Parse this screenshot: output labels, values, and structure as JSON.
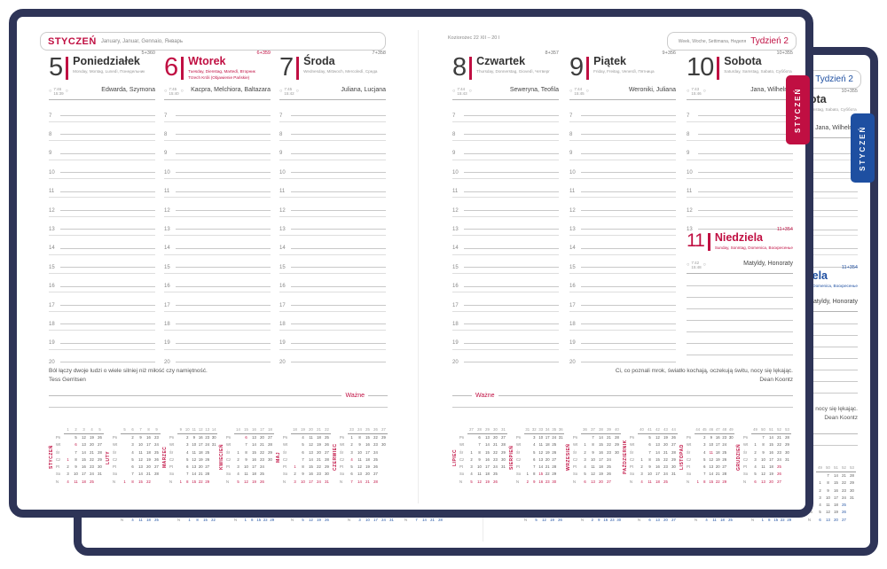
{
  "colors": {
    "cover_navy": "#2e3457",
    "accent_front": "#c00f42",
    "accent_back": "#1e4fa1",
    "line_gray": "#c9c9c9"
  },
  "page": {
    "month_header": {
      "month": "STYCZEŃ",
      "subtitle": "January, Januar, Gennaio, Январь"
    },
    "zodiac": "Koziorożec 22 XII – 20 I",
    "week_box": {
      "subtitle": "Week, Woche, Settimana, Неделя",
      "label": "Tydzień 2"
    },
    "tab_label": "STYCZEŃ",
    "wazne_label": "Ważne",
    "hours": [
      "7",
      "8",
      "9",
      "10",
      "11",
      "12",
      "13",
      "14",
      "15",
      "16",
      "17",
      "18",
      "19",
      "20"
    ],
    "sun_circle_icon": "○",
    "days": [
      {
        "num": "5",
        "name": "Poniedziałek",
        "langs": "Monday, Montag, Lunedì, Понедельник",
        "counter": "5+360",
        "sunrise": "7:46",
        "sunset": "15:39",
        "names": "Edwarda, Szymona",
        "accent": false
      },
      {
        "num": "6",
        "name": "Wtorek",
        "langs": "Tuesday, Dienstag, Martedì, Вторник",
        "holiday": "Trzech Króli (Objawienie Pańskie)",
        "counter": "6+359",
        "sunrise": "7:45",
        "sunset": "15:40",
        "names": "Kacpra, Melchiora, Baltazara",
        "accent": true
      },
      {
        "num": "7",
        "name": "Środa",
        "langs": "Wednesday, Mittwoch, Mercoledì, Среда",
        "counter": "7+358",
        "sunrise": "7:45",
        "sunset": "15:42",
        "names": "Juliana, Lucjana",
        "accent": false
      },
      {
        "num": "8",
        "name": "Czwartek",
        "langs": "Thursday, Donnerstag, Giovedì, Четверг",
        "counter": "8+357",
        "sunrise": "7:44",
        "sunset": "15:43",
        "names": "Seweryna, Teofila",
        "accent": false
      },
      {
        "num": "9",
        "name": "Piątek",
        "langs": "Friday, Freitag, Venerdì, Пятница",
        "counter": "9+356",
        "sunrise": "7:44",
        "sunset": "15:45",
        "names": "Weroniki, Juliana",
        "accent": false
      },
      {
        "num": "10",
        "name": "Sobota",
        "langs": "Saturday, Samstag, Sabato, Суббота",
        "counter": "10+355",
        "sunrise": "7:43",
        "sunset": "15:46",
        "names": "Jana, Wilhelma",
        "accent": false,
        "has_sunday_inset": true
      }
    ],
    "sunday_inset": {
      "num": "11",
      "name": "Niedziela",
      "langs": "Sunday, Sonntag, Domenica, Воскресенье",
      "counter": "11+354",
      "sunrise": "7:42",
      "sunset": "15:48",
      "names": "Matyldy, Honoraty",
      "accent": true
    },
    "quotes": {
      "left": {
        "text": "Ból łączy dwoje ludzi o wiele silniej niż miłość czy namiętność.",
        "author": "Tess Gerritsen"
      },
      "right": {
        "text": "Ci, co poznali mrok, światło kochają, oczekują świtu, nocy się lękając.",
        "author": "Dean Koontz"
      }
    },
    "weekday_abbrevs": [
      "Pn",
      "Wt",
      "Śr",
      "Cz",
      "Pt",
      "So",
      "N"
    ],
    "mini_calendars": [
      {
        "label": "STYCZEŃ",
        "weeks": [
          "1",
          "2",
          "3",
          "4",
          "5"
        ],
        "rows": [
          [
            "",
            "5",
            "12",
            "19",
            "26"
          ],
          [
            "",
            "*6",
            "13",
            "20",
            "27"
          ],
          [
            "",
            "7",
            "14",
            "21",
            "28"
          ],
          [
            "*1",
            "8",
            "15",
            "22",
            "29"
          ],
          [
            "2",
            "9",
            "16",
            "23",
            "30"
          ],
          [
            "3",
            "10",
            "17",
            "24",
            "31"
          ],
          [
            "4",
            "11",
            "18",
            "25",
            ""
          ]
        ]
      },
      {
        "label": "LUTY",
        "weeks": [
          "5",
          "6",
          "7",
          "8",
          "9"
        ],
        "rows": [
          [
            "",
            "2",
            "9",
            "16",
            "23"
          ],
          [
            "",
            "3",
            "10",
            "17",
            "24"
          ],
          [
            "",
            "4",
            "11",
            "18",
            "25"
          ],
          [
            "",
            "5",
            "12",
            "19",
            "26"
          ],
          [
            "",
            "6",
            "13",
            "20",
            "27"
          ],
          [
            "",
            "7",
            "14",
            "21",
            "28"
          ],
          [
            "1",
            "8",
            "15",
            "22",
            ""
          ]
        ]
      },
      {
        "label": "MARZEC",
        "weeks": [
          "9",
          "10",
          "11",
          "12",
          "13",
          "14"
        ],
        "rows": [
          [
            "",
            "2",
            "9",
            "16",
            "23",
            "30"
          ],
          [
            "",
            "3",
            "10",
            "17",
            "24",
            "31"
          ],
          [
            "",
            "4",
            "11",
            "18",
            "25",
            ""
          ],
          [
            "",
            "5",
            "12",
            "19",
            "26",
            ""
          ],
          [
            "",
            "6",
            "13",
            "20",
            "27",
            ""
          ],
          [
            "",
            "7",
            "14",
            "21",
            "28",
            ""
          ],
          [
            "1",
            "8",
            "15",
            "22",
            "29",
            ""
          ]
        ]
      },
      {
        "label": "KWIECIEŃ",
        "weeks": [
          "14",
          "15",
          "16",
          "17",
          "18"
        ],
        "rows": [
          [
            "",
            "*6",
            "13",
            "20",
            "27"
          ],
          [
            "",
            "7",
            "14",
            "21",
            "28"
          ],
          [
            "1",
            "8",
            "15",
            "22",
            "29"
          ],
          [
            "2",
            "9",
            "16",
            "23",
            "30"
          ],
          [
            "3",
            "10",
            "17",
            "24",
            ""
          ],
          [
            "4",
            "11",
            "18",
            "25",
            ""
          ],
          [
            "5",
            "12",
            "19",
            "26",
            ""
          ]
        ]
      },
      {
        "label": "MAJ",
        "weeks": [
          "18",
          "19",
          "20",
          "21",
          "22"
        ],
        "rows": [
          [
            "",
            "4",
            "11",
            "18",
            "25"
          ],
          [
            "",
            "5",
            "12",
            "19",
            "26"
          ],
          [
            "",
            "6",
            "13",
            "20",
            "27"
          ],
          [
            "",
            "7",
            "14",
            "21",
            "28"
          ],
          [
            "*1",
            "8",
            "15",
            "22",
            "29"
          ],
          [
            "2",
            "9",
            "16",
            "23",
            "30"
          ],
          [
            "3",
            "10",
            "17",
            "24",
            "31"
          ]
        ]
      },
      {
        "label": "CZERWIEC",
        "weeks": [
          "23",
          "24",
          "25",
          "26",
          "27"
        ],
        "rows": [
          [
            "1",
            "8",
            "15",
            "22",
            "29"
          ],
          [
            "2",
            "9",
            "16",
            "23",
            "30"
          ],
          [
            "3",
            "10",
            "17",
            "24",
            ""
          ],
          [
            "*4",
            "11",
            "18",
            "25",
            ""
          ],
          [
            "5",
            "12",
            "19",
            "26",
            ""
          ],
          [
            "6",
            "13",
            "20",
            "27",
            ""
          ],
          [
            "7",
            "14",
            "21",
            "28",
            ""
          ]
        ]
      },
      {
        "label": "LIPIEC",
        "weeks": [
          "27",
          "28",
          "29",
          "30",
          "31"
        ],
        "rows": [
          [
            "",
            "6",
            "13",
            "20",
            "27"
          ],
          [
            "",
            "7",
            "14",
            "21",
            "28"
          ],
          [
            "1",
            "8",
            "15",
            "22",
            "29"
          ],
          [
            "2",
            "9",
            "16",
            "23",
            "30"
          ],
          [
            "3",
            "10",
            "17",
            "24",
            "31"
          ],
          [
            "4",
            "11",
            "18",
            "25",
            ""
          ],
          [
            "5",
            "12",
            "19",
            "26",
            ""
          ]
        ]
      },
      {
        "label": "SIERPIEŃ",
        "weeks": [
          "31",
          "32",
          "33",
          "34",
          "35",
          "36"
        ],
        "rows": [
          [
            "",
            "3",
            "10",
            "17",
            "24",
            "31"
          ],
          [
            "",
            "4",
            "11",
            "18",
            "25",
            ""
          ],
          [
            "",
            "5",
            "12",
            "19",
            "26",
            ""
          ],
          [
            "",
            "6",
            "13",
            "20",
            "27",
            ""
          ],
          [
            "",
            "7",
            "14",
            "21",
            "28",
            ""
          ],
          [
            "1",
            "8",
            "*15",
            "22",
            "29",
            ""
          ],
          [
            "2",
            "9",
            "16",
            "23",
            "30",
            ""
          ]
        ]
      },
      {
        "label": "WRZESIEŃ",
        "weeks": [
          "36",
          "37",
          "38",
          "39",
          "40"
        ],
        "rows": [
          [
            "",
            "7",
            "14",
            "21",
            "28"
          ],
          [
            "1",
            "8",
            "15",
            "22",
            "29"
          ],
          [
            "2",
            "9",
            "16",
            "23",
            "30"
          ],
          [
            "3",
            "10",
            "17",
            "24",
            ""
          ],
          [
            "4",
            "11",
            "18",
            "25",
            ""
          ],
          [
            "5",
            "12",
            "19",
            "26",
            ""
          ],
          [
            "6",
            "13",
            "20",
            "27",
            ""
          ]
        ]
      },
      {
        "label": "PAŹDZIERNIK",
        "weeks": [
          "40",
          "41",
          "42",
          "43",
          "44"
        ],
        "rows": [
          [
            "",
            "5",
            "12",
            "19",
            "26"
          ],
          [
            "",
            "6",
            "13",
            "20",
            "27"
          ],
          [
            "",
            "7",
            "14",
            "21",
            "28"
          ],
          [
            "1",
            "8",
            "15",
            "22",
            "29"
          ],
          [
            "2",
            "9",
            "16",
            "23",
            "30"
          ],
          [
            "3",
            "10",
            "17",
            "24",
            "31"
          ],
          [
            "4",
            "11",
            "18",
            "25",
            ""
          ]
        ]
      },
      {
        "label": "LISTOPAD",
        "weeks": [
          "44",
          "45",
          "46",
          "47",
          "48",
          "49"
        ],
        "rows": [
          [
            "",
            "2",
            "9",
            "16",
            "23",
            "30"
          ],
          [
            "",
            "3",
            "10",
            "17",
            "24",
            ""
          ],
          [
            "",
            "4",
            "*11",
            "18",
            "25",
            ""
          ],
          [
            "",
            "5",
            "12",
            "19",
            "26",
            ""
          ],
          [
            "",
            "6",
            "13",
            "20",
            "27",
            ""
          ],
          [
            "",
            "7",
            "14",
            "21",
            "28",
            ""
          ],
          [
            "1",
            "8",
            "15",
            "22",
            "29",
            ""
          ]
        ]
      },
      {
        "label": "GRUDZIEŃ",
        "weeks": [
          "49",
          "50",
          "51",
          "52",
          "53"
        ],
        "rows": [
          [
            "",
            "7",
            "14",
            "21",
            "28"
          ],
          [
            "1",
            "8",
            "15",
            "22",
            "29"
          ],
          [
            "2",
            "9",
            "16",
            "23",
            "30"
          ],
          [
            "3",
            "10",
            "17",
            "24",
            "31"
          ],
          [
            "4",
            "11",
            "18",
            "*25",
            ""
          ],
          [
            "5",
            "12",
            "19",
            "*26",
            ""
          ],
          [
            "6",
            "13",
            "20",
            "27",
            ""
          ]
        ]
      }
    ]
  }
}
